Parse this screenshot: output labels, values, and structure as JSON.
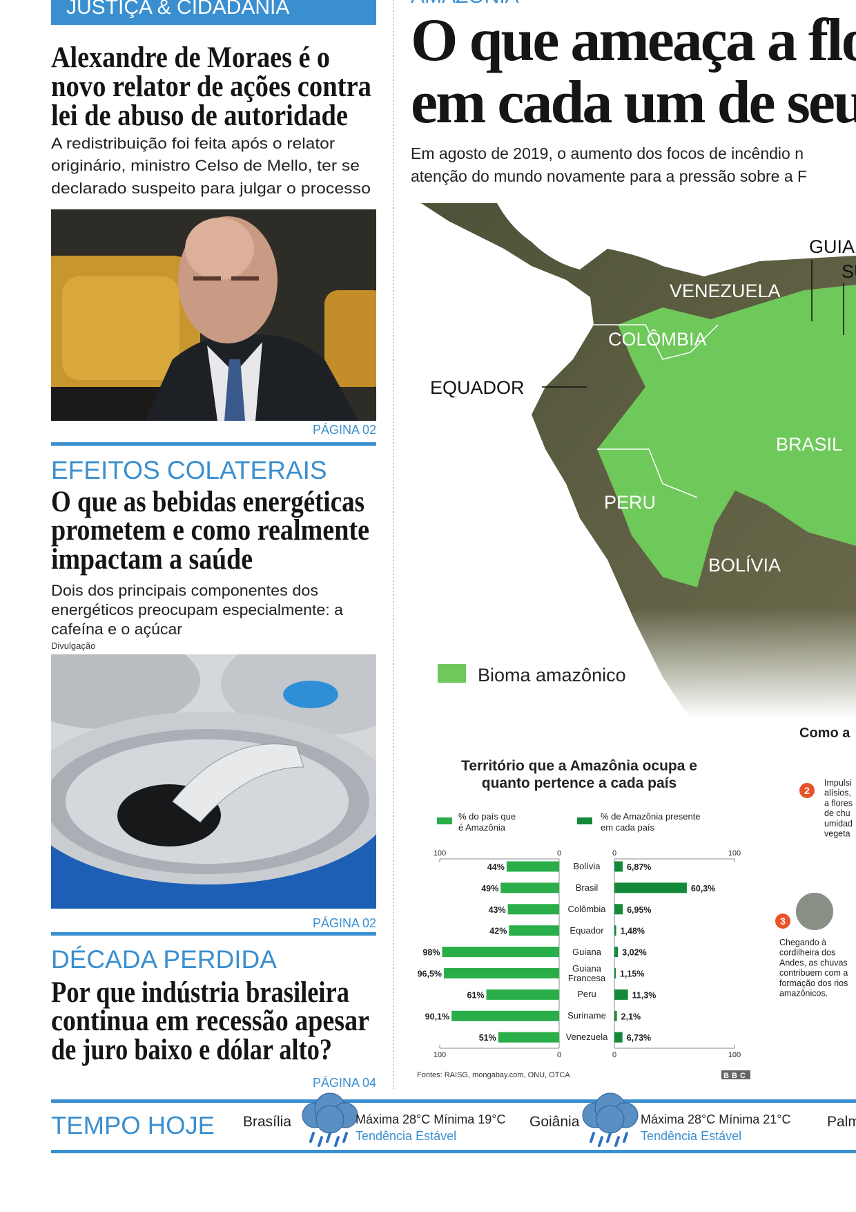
{
  "sections": [
    {
      "kicker": "JUSTIÇA & CIDADANIA",
      "headline": [
        "Alexandre de Moraes é o",
        "novo relator de ações contra",
        "lei de abuso de autoridade"
      ],
      "summary": [
        "A redistribuição foi feita após o relator",
        "originário, ministro Celso de Mello, ter se",
        "declarado suspeito para julgar o processo"
      ],
      "page": "PÁGINA 02"
    },
    {
      "kicker": "EFEITOS COLATERAIS",
      "headline": [
        "O que as bebidas energéticas",
        "prometem e como realmente",
        "impactam a saúde"
      ],
      "summary": [
        "Dois dos principais componentes dos",
        "energéticos preocupam especialmente: a",
        "cafeína e o açúcar"
      ],
      "credit": "Divulgação",
      "page": "PÁGINA 02"
    },
    {
      "kicker": "DÉCADA PERDIDA",
      "headline": [
        "Por que indústria brasileira",
        "continua em recessão apesar",
        "de juro baixo e dólar alto?"
      ],
      "page": "PÁGINA 04"
    }
  ],
  "feature": {
    "kicker": "AMAZÔNIA",
    "headline": [
      "O que ameaça a flo",
      "em cada um de seu"
    ],
    "deck": [
      "Em agosto de 2019, o aumento dos focos de incêndio n",
      "atenção do mundo novamente para a pressão sobre a F"
    ],
    "map_labels": [
      "GUIA",
      "SU",
      "VENEZUELA",
      "COLÔMBIA",
      "EQUADOR",
      "BRASIL",
      "PERU",
      "BOLÍVIA"
    ],
    "legend": "Bioma amazônico",
    "sidebar": {
      "title": "Como a",
      "steps": [
        {
          "number": "2",
          "lines": [
            "Impulsi",
            "alísios,",
            "a flores",
            "de chu",
            "umidad",
            "vegeta"
          ]
        },
        {
          "number": "3",
          "lines": [
            "Chegando à",
            "cordilheira dos",
            "Andes, as chuvas",
            "contribuem com a",
            "formação dos rios",
            "amazônicos."
          ]
        }
      ]
    }
  },
  "chart_data": {
    "type": "bar",
    "title": "Território que a Amazônia ocupa e quanto pertence a cada país",
    "categories": [
      "Bolívia",
      "Brasil",
      "Colômbia",
      "Equador",
      "Guiana",
      "Guiana Francesa",
      "Peru",
      "Suriname",
      "Venezuela"
    ],
    "series": [
      {
        "name": "% do país que é Amazônia",
        "color": "#2aae4a",
        "values": [
          44,
          49,
          43,
          42,
          98,
          96.5,
          61,
          90.1,
          51
        ],
        "value_labels": [
          "44%",
          "49%",
          "43%",
          "42%",
          "98%",
          "96,5%",
          "61%",
          "90,1%",
          "51%"
        ]
      },
      {
        "name": "% de Amazônia presente em cada país",
        "color": "#14893a",
        "values": [
          6.87,
          60.3,
          6.95,
          1.48,
          3.02,
          1.15,
          11.3,
          2.1,
          6.73
        ],
        "value_labels": [
          "6,87%",
          "60,3%",
          "6,95%",
          "1,48%",
          "3,02%",
          "1,15%",
          "11,3%",
          "2,1%",
          "6,73%"
        ]
      }
    ],
    "xlim": [
      0,
      100
    ],
    "xticks": [
      0,
      100
    ],
    "source": "Fontes: RAISG, mongabay.com, ONU, OTCA",
    "logo": "BBC"
  },
  "weather": {
    "title": "TEMPO HOJE",
    "cities": [
      {
        "name": "Brasília",
        "temps": "Máxima 28°C Mínima 19°C",
        "trend": "Tendência Estável"
      },
      {
        "name": "Goiânia",
        "temps": "Máxima 28°C Mínima 21°C",
        "trend": "Tendência Estável"
      },
      {
        "name": "Palm"
      }
    ]
  }
}
